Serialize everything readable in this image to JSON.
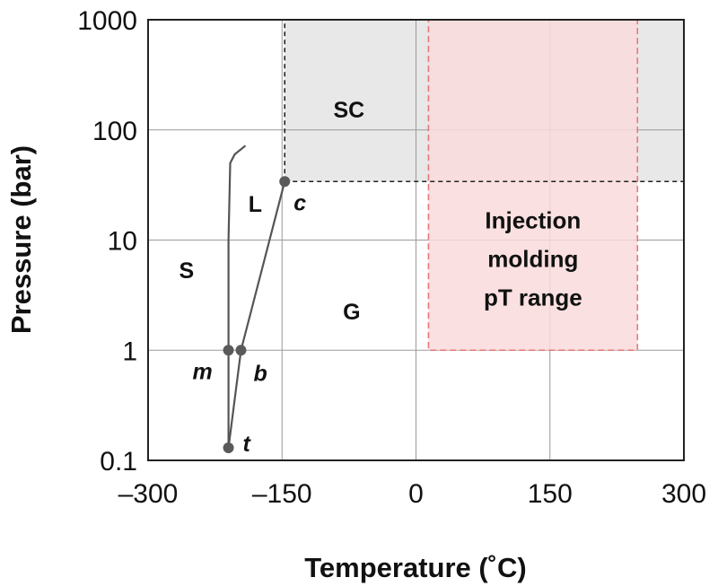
{
  "chart_data": {
    "type": "line",
    "title": "",
    "xlabel": "Temperature (˚C)",
    "ylabel": "Pressure (bar)",
    "xlim": [
      -300,
      300
    ],
    "ylim": [
      0.1,
      1000
    ],
    "yscale": "log",
    "grid": true,
    "x_ticks": [
      {
        "value": -300,
        "label": "–300"
      },
      {
        "value": -150,
        "label": "–150"
      },
      {
        "value": 0,
        "label": "0"
      },
      {
        "value": 150,
        "label": "150"
      },
      {
        "value": 300,
        "label": "300"
      }
    ],
    "y_ticks": [
      {
        "value": 0.1,
        "label": "0.1"
      },
      {
        "value": 1,
        "label": "1"
      },
      {
        "value": 10,
        "label": "10"
      },
      {
        "value": 100,
        "label": "100"
      },
      {
        "value": 1000,
        "label": "1000"
      }
    ],
    "curves": {
      "melting": [
        [
          -210,
          0.13
        ],
        [
          -210,
          1
        ],
        [
          -210,
          10
        ],
        [
          -208,
          50
        ],
        [
          -203,
          60
        ],
        [
          -191,
          72
        ]
      ],
      "boiling": [
        [
          -210,
          0.13
        ],
        [
          -196,
          1
        ],
        [
          -147,
          34
        ]
      ]
    },
    "points": [
      {
        "label": "t",
        "x": -210,
        "y": 0.13
      },
      {
        "label": "m",
        "x": -210,
        "y": 1
      },
      {
        "label": "b",
        "x": -196,
        "y": 1
      },
      {
        "label": "c",
        "x": -147,
        "y": 34
      }
    ],
    "regions": [
      {
        "label": "SC",
        "x": -75,
        "y": 130
      },
      {
        "label": "L",
        "x": -180,
        "y": 18
      },
      {
        "label": "S",
        "x": -257,
        "y": 4.5
      },
      {
        "label": "G",
        "x": -72,
        "y": 1.9
      }
    ],
    "supercritical_region": {
      "x": [
        -147,
        300
      ],
      "y": [
        34,
        1000
      ],
      "color": "#e8e8e8"
    },
    "injection_box": {
      "x": [
        14,
        248
      ],
      "y": [
        1,
        1000
      ],
      "color": "#e87878",
      "fill": "#f9dada",
      "lines": [
        "Injection",
        "molding",
        "pT range"
      ]
    }
  }
}
